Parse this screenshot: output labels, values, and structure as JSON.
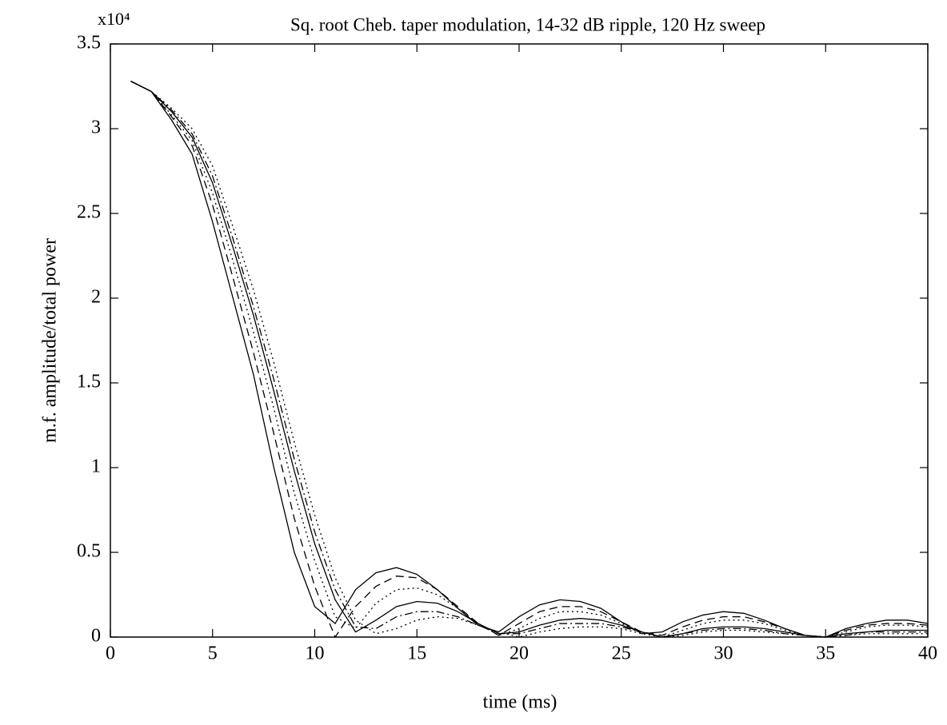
{
  "chart_data": {
    "type": "line",
    "title": "Sq. root Cheb. taper modulation, 14-32 dB ripple, 120 Hz sweep",
    "y_multiplier": "x10⁴",
    "xlabel": "time (ms)",
    "ylabel": "m.f. amplitude/total power",
    "x": [
      1,
      2,
      3,
      4,
      5,
      6,
      7,
      8,
      9,
      10,
      11,
      12,
      13,
      14,
      15,
      16,
      17,
      18,
      19,
      20,
      21,
      22,
      23,
      24,
      25,
      26,
      27,
      28,
      29,
      30,
      31,
      32,
      33,
      34,
      35,
      36,
      37,
      38,
      39,
      40
    ],
    "series": [
      {
        "color": "#000000",
        "dash": "solid",
        "values": [
          3.28,
          3.22,
          3.05,
          2.85,
          2.45,
          2.0,
          1.55,
          1.0,
          0.5,
          0.18,
          0.08,
          0.28,
          0.38,
          0.41,
          0.37,
          0.28,
          0.17,
          0.07,
          0.03,
          0.12,
          0.19,
          0.22,
          0.21,
          0.17,
          0.09,
          0.02,
          0.03,
          0.09,
          0.13,
          0.15,
          0.14,
          0.1,
          0.05,
          0.01,
          0.0,
          0.05,
          0.08,
          0.1,
          0.1,
          0.08
        ]
      },
      {
        "color": "#000000",
        "dash": "dashed",
        "values": [
          3.28,
          3.22,
          3.07,
          2.9,
          2.55,
          2.12,
          1.68,
          1.2,
          0.7,
          0.3,
          0.0,
          0.18,
          0.3,
          0.36,
          0.35,
          0.28,
          0.18,
          0.08,
          0.01,
          0.08,
          0.15,
          0.18,
          0.18,
          0.15,
          0.09,
          0.03,
          0.01,
          0.06,
          0.1,
          0.12,
          0.12,
          0.09,
          0.05,
          0.01,
          0.0,
          0.04,
          0.07,
          0.08,
          0.08,
          0.07
        ]
      },
      {
        "color": "#000000",
        "dash": "dotted",
        "values": [
          3.28,
          3.22,
          3.08,
          2.93,
          2.62,
          2.22,
          1.8,
          1.35,
          0.85,
          0.45,
          0.12,
          0.05,
          0.2,
          0.28,
          0.29,
          0.25,
          0.17,
          0.08,
          0.01,
          0.05,
          0.11,
          0.15,
          0.15,
          0.13,
          0.08,
          0.03,
          0.0,
          0.04,
          0.08,
          0.1,
          0.1,
          0.08,
          0.04,
          0.01,
          0.0,
          0.03,
          0.06,
          0.07,
          0.07,
          0.06
        ]
      },
      {
        "color": "#000000",
        "dash": "solid",
        "values": [
          3.28,
          3.22,
          3.1,
          2.95,
          2.68,
          2.3,
          1.9,
          1.45,
          0.98,
          0.55,
          0.22,
          0.03,
          0.1,
          0.18,
          0.21,
          0.2,
          0.15,
          0.08,
          0.02,
          0.03,
          0.07,
          0.1,
          0.11,
          0.1,
          0.07,
          0.03,
          0.0,
          0.02,
          0.05,
          0.06,
          0.06,
          0.05,
          0.03,
          0.01,
          0.0,
          0.02,
          0.03,
          0.04,
          0.04,
          0.04
        ]
      },
      {
        "color": "#000000",
        "dash": "dashdot",
        "values": [
          3.28,
          3.22,
          3.11,
          2.97,
          2.72,
          2.35,
          1.95,
          1.52,
          1.05,
          0.62,
          0.28,
          0.06,
          0.05,
          0.12,
          0.15,
          0.15,
          0.12,
          0.07,
          0.02,
          0.02,
          0.05,
          0.08,
          0.08,
          0.08,
          0.06,
          0.03,
          0.0,
          0.02,
          0.04,
          0.05,
          0.05,
          0.04,
          0.02,
          0.01,
          0.0,
          0.01,
          0.03,
          0.03,
          0.03,
          0.03
        ]
      },
      {
        "color": "#000000",
        "dash": "dotted",
        "values": [
          3.28,
          3.22,
          3.12,
          3.0,
          2.78,
          2.42,
          2.05,
          1.62,
          1.15,
          0.72,
          0.35,
          0.1,
          0.02,
          0.05,
          0.1,
          0.12,
          0.11,
          0.07,
          0.03,
          0.0,
          0.03,
          0.05,
          0.06,
          0.06,
          0.05,
          0.02,
          0.0,
          0.01,
          0.03,
          0.04,
          0.04,
          0.03,
          0.02,
          0.01,
          0.0,
          0.01,
          0.02,
          0.02,
          0.02,
          0.02
        ]
      }
    ],
    "xlim": [
      0,
      40
    ],
    "ylim": [
      0,
      3.5
    ],
    "xticks": [
      0,
      5,
      10,
      15,
      20,
      25,
      30,
      35,
      40
    ],
    "yticks": [
      0,
      0.5,
      1,
      1.5,
      2,
      2.5,
      3,
      3.5
    ],
    "grid": false
  }
}
